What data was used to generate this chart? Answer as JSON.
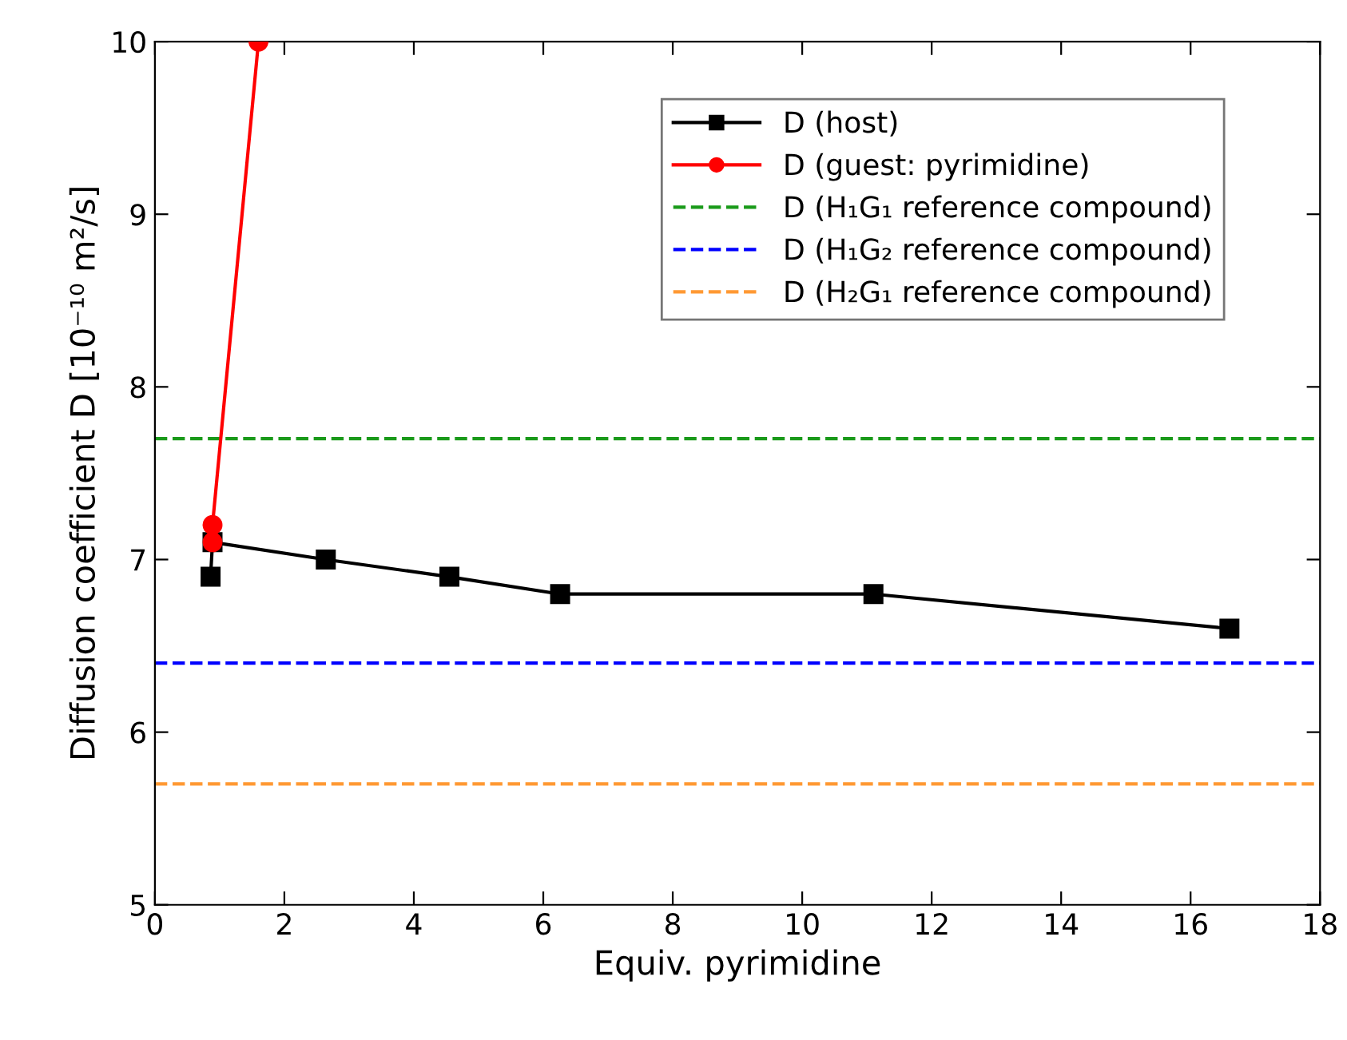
{
  "chart_data": {
    "type": "line",
    "xlabel": "Equiv. pyrimidine",
    "ylabel": "Diffusion coefficient D [10⁻¹⁰ m²/s]",
    "xlim": [
      0,
      18
    ],
    "xticks": [
      0,
      2,
      4,
      6,
      8,
      10,
      12,
      14,
      16,
      18
    ],
    "ylim": [
      5,
      10
    ],
    "yticks": [
      5,
      6,
      7,
      8,
      9,
      10
    ],
    "grid": false,
    "legend": "top right",
    "line_style": "solid",
    "series": [
      {
        "name": "D (host)",
        "color": "#000000",
        "marker": "square",
        "x": [
          0.86,
          0.89,
          2.64,
          4.55,
          6.26,
          11.1,
          16.6
        ],
        "values": [
          6.9,
          7.1,
          7.0,
          6.9,
          6.8,
          6.8,
          6.6
        ]
      },
      {
        "name": "D (guest: pyrimidine)",
        "color": "#ff0000",
        "marker": "circle",
        "x": [
          0.89,
          0.89,
          1.6
        ],
        "values": [
          7.1,
          7.2,
          10
        ]
      }
    ],
    "ref_lines": [
      {
        "axis": "y",
        "value": 7.7,
        "label": "D (H₁G₁ reference compound)",
        "color": "#1a9a1a",
        "line_style": "dashed"
      },
      {
        "axis": "y",
        "value": 6.4,
        "label": "D (H₁G₂ reference compound)",
        "color": "#0000ff",
        "line_style": "dashed"
      },
      {
        "axis": "y",
        "value": 5.7,
        "label": "D (H₂G₁ reference compound)",
        "color": "#ff9933",
        "line_style": "dashed"
      }
    ]
  }
}
